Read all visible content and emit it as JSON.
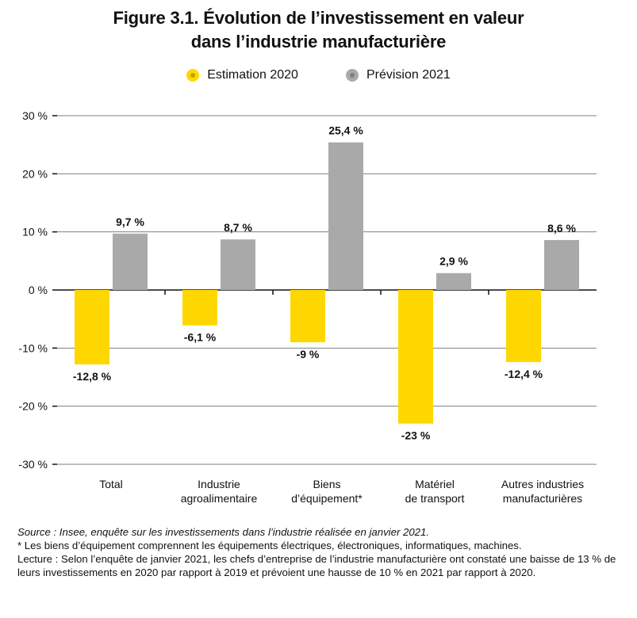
{
  "title": {
    "line1": "Figure 3.1. Évolution de l’investissement en valeur",
    "line2": "dans l’industrie manufacturière"
  },
  "colors": {
    "estimation": "#FFD700",
    "prevision": "#A9A9A9",
    "grid": "#7f7f7f"
  },
  "chart_data": {
    "type": "bar",
    "categories": [
      [
        "Total"
      ],
      [
        "Industrie",
        "agroalimentaire"
      ],
      [
        "Biens",
        "d’équipement*"
      ],
      [
        "Matériel",
        "de transport"
      ],
      [
        "Autres industries",
        "manufacturières"
      ]
    ],
    "series": [
      {
        "name": "Estimation 2020",
        "values": [
          -12.8,
          -6.1,
          -9,
          -23,
          -12.4
        ],
        "labels": [
          "-12,8 %",
          "-6,1 %",
          "-9 %",
          "-23 %",
          "-12,4 %"
        ]
      },
      {
        "name": "Prévision 2021",
        "values": [
          9.7,
          8.7,
          25.4,
          2.9,
          8.6
        ],
        "labels": [
          "9,7 %",
          "8,7 %",
          "25,4 %",
          "2,9 %",
          "8,6 %"
        ]
      }
    ],
    "yticks": [
      30,
      20,
      10,
      0,
      -10,
      -20,
      -30
    ],
    "ytick_labels": [
      "30 %",
      "20 %",
      "10 %",
      "0 %",
      "-10 %",
      "-20 %",
      "-30 %"
    ],
    "ylim": [
      -30,
      30
    ],
    "grid": true,
    "legend_position": "top-center"
  },
  "notes": {
    "source": "Source : Insee, enquête sur les investissements dans l’industrie réalisée en janvier 2021.",
    "footnote": "* Les biens d’équipement comprennent les équipements électriques, électroniques, informatiques, machines.",
    "reading": "Lecture : Selon l’enquête de janvier 2021, les chefs d’entreprise de l’industrie manufacturière ont constaté une baisse de 13 % de leurs investissements en 2020 par rapport à 2019 et prévoient une hausse de 10 % en 2021 par rapport à 2020."
  }
}
